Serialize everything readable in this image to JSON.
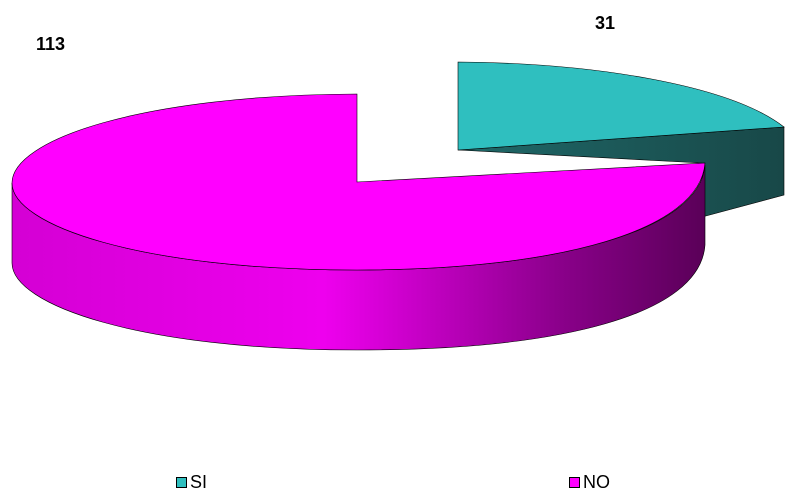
{
  "chart_data": {
    "type": "pie",
    "style": "3d-exploded",
    "categories": [
      "SI",
      "NO"
    ],
    "values": [
      31,
      113
    ],
    "data_labels": [
      "31",
      "113"
    ],
    "colors": [
      "#2fbfbf",
      "#ff00ff"
    ],
    "legend": "bottom"
  }
}
